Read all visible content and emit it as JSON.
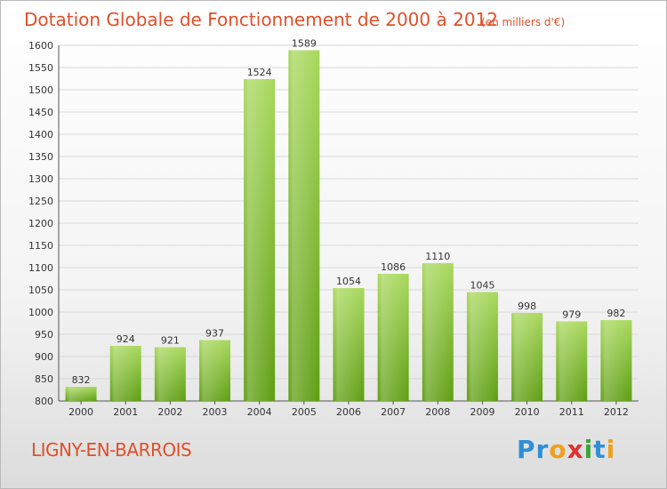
{
  "title": "Dotation Globale de Fonctionnement de 2000 à 2012",
  "unit_note": "(en milliers d'€)",
  "place": "LIGNY-EN-BARROIS",
  "logo": {
    "text": "Proxiti",
    "letters": [
      {
        "ch": "P",
        "color": "#2e8fd6"
      },
      {
        "ch": "r",
        "color": "#2e8fd6"
      },
      {
        "ch": "o",
        "color": "#f0a020"
      },
      {
        "ch": "x",
        "color": "#e03030"
      },
      {
        "ch": "i",
        "color": "#3aa53a"
      },
      {
        "ch": "t",
        "color": "#2e8fd6"
      },
      {
        "ch": "i",
        "color": "#f0a020"
      }
    ]
  },
  "colors": {
    "title": "#e0502a",
    "bar_light": "#a6d65a",
    "bar_dark": "#5e9e12",
    "grid": "#d9d9d9"
  },
  "chart_data": {
    "type": "bar",
    "title": "Dotation Globale de Fonctionnement de 2000 à 2012",
    "xlabel": "",
    "ylabel": "",
    "categories": [
      "2000",
      "2001",
      "2002",
      "2003",
      "2004",
      "2005",
      "2006",
      "2007",
      "2008",
      "2009",
      "2010",
      "2011",
      "2012"
    ],
    "values": [
      832,
      924,
      921,
      937,
      1524,
      1589,
      1054,
      1086,
      1110,
      1045,
      998,
      979,
      982
    ],
    "ylim": [
      800,
      1600
    ],
    "yticks": [
      800,
      850,
      900,
      950,
      1000,
      1050,
      1100,
      1150,
      1200,
      1250,
      1300,
      1350,
      1400,
      1450,
      1500,
      1550,
      1600
    ],
    "grid": true
  }
}
